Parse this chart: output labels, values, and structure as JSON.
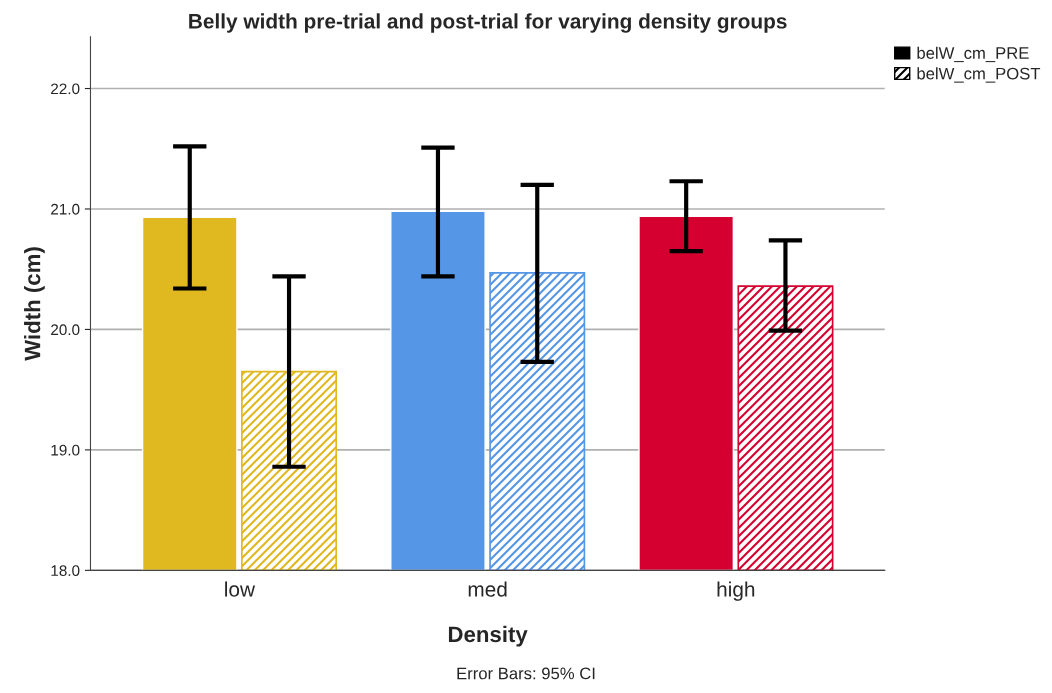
{
  "chart_data": {
    "type": "bar",
    "title": "Belly width pre-trial and post-trial for varying density groups",
    "xlabel": "Density",
    "ylabel": "Width (cm)",
    "categories": [
      "low",
      "med",
      "high"
    ],
    "series": [
      {
        "name": "belW_cm_PRE",
        "colors": [
          "#e0b820",
          "#5596e6",
          "#d5002f"
        ],
        "values": [
          20.93,
          20.98,
          20.94
        ],
        "errors": [
          [
            20.34,
            21.52
          ],
          [
            20.44,
            21.51
          ],
          [
            20.65,
            21.23
          ]
        ]
      },
      {
        "name": "belW_cm_POST",
        "colors": [
          "#e0b820",
          "#5596e6",
          "#d5002f"
        ],
        "values": [
          19.65,
          20.47,
          20.36
        ],
        "errors": [
          [
            18.86,
            20.44
          ],
          [
            19.73,
            21.2
          ],
          [
            19.99,
            20.74
          ]
        ]
      }
    ],
    "ylim": [
      18.0,
      22.43
    ],
    "yticks": [
      {
        "value": 18,
        "label": "18.0"
      },
      {
        "value": 19,
        "label": "19.0"
      },
      {
        "value": 20,
        "label": "20.0"
      },
      {
        "value": 21,
        "label": "21.0"
      },
      {
        "value": 22,
        "label": "22.0"
      }
    ],
    "grid": "y",
    "legend": "top right",
    "annotations": [
      "Error Bars: 95% CI"
    ]
  }
}
